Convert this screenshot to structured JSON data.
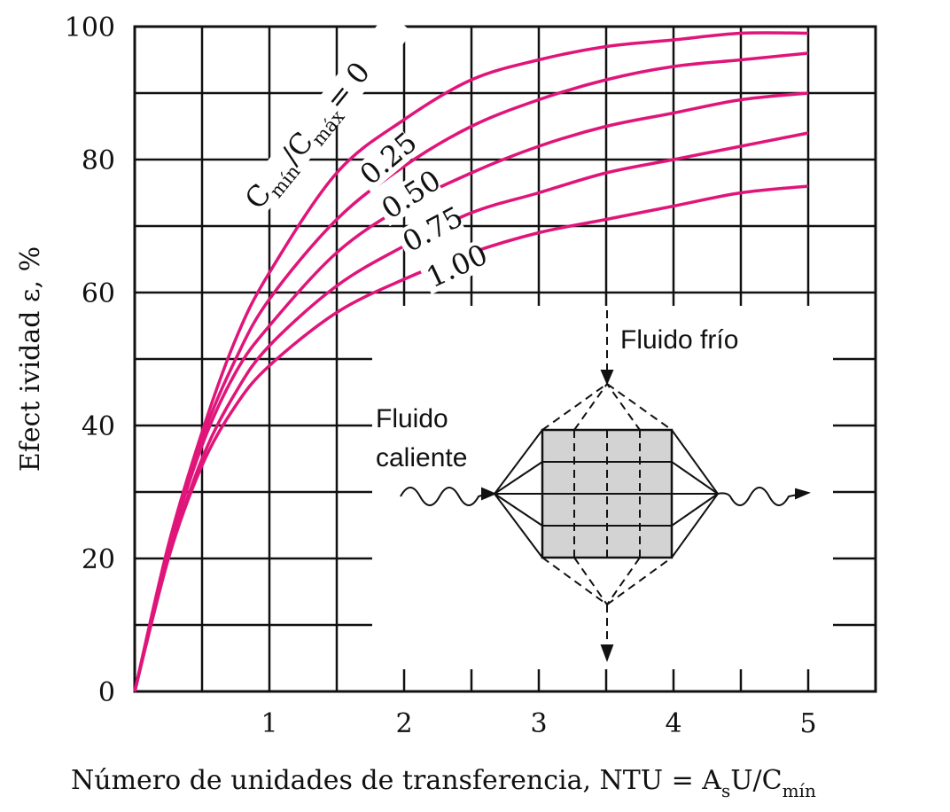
{
  "chart_data": {
    "type": "line",
    "xlabel": "Número de unidades de transferencia, NTU = A",
    "xlabel_sub_s": "s",
    "xlabel_mid": "U/C",
    "xlabel_sub_min": "mín",
    "ylabel": "Efect ividad ε, %",
    "xlim": [
      0,
      5.5
    ],
    "ylim": [
      0,
      100
    ],
    "x_ticks": [
      1,
      2,
      3,
      4,
      5
    ],
    "y_ticks": [
      0,
      20,
      40,
      60,
      80,
      100
    ],
    "grid": true,
    "curve_color": "#e0157a",
    "series": [
      {
        "name": "0",
        "x": [
          0,
          0.25,
          0.5,
          0.75,
          1,
          1.5,
          2,
          2.5,
          3,
          3.5,
          4,
          4.5,
          5
        ],
        "values": [
          0,
          22,
          39,
          53,
          63,
          78,
          86,
          92,
          95,
          97,
          98,
          99,
          99
        ]
      },
      {
        "name": "0.25",
        "x": [
          0,
          0.25,
          0.5,
          0.75,
          1,
          1.5,
          2,
          2.5,
          3,
          3.5,
          4,
          4.5,
          5
        ],
        "values": [
          0,
          21,
          38,
          50,
          59,
          71,
          79,
          85,
          89,
          92,
          94,
          95,
          96
        ]
      },
      {
        "name": "0.50",
        "x": [
          0,
          0.25,
          0.5,
          0.75,
          1,
          1.5,
          2,
          2.5,
          3,
          3.5,
          4,
          4.5,
          5
        ],
        "values": [
          0,
          21,
          37,
          48,
          55,
          66,
          73,
          78,
          82,
          85,
          87,
          89,
          90
        ]
      },
      {
        "name": "0.75",
        "x": [
          0,
          0.25,
          0.5,
          0.75,
          1,
          1.5,
          2,
          2.5,
          3,
          3.5,
          4,
          4.5,
          5
        ],
        "values": [
          0,
          20,
          35,
          45,
          52,
          61,
          67,
          72,
          75,
          78,
          80,
          82,
          84
        ]
      },
      {
        "name": "1.00",
        "x": [
          0,
          0.25,
          0.5,
          0.75,
          1,
          1.5,
          2,
          2.5,
          3,
          3.5,
          4,
          4.5,
          5
        ],
        "values": [
          0,
          20,
          34,
          43,
          49,
          57,
          62,
          66,
          69,
          71,
          73,
          75,
          76
        ]
      }
    ],
    "curve_labels": {
      "c_min": "C",
      "c_min_sub": "mín",
      "c_max": "/C",
      "c_max_sub": "máx",
      "c_eq": "= 0",
      "r025": "0.25",
      "r050": "0.50",
      "r075": "0.75",
      "r100": "1.00"
    },
    "inset": {
      "cold_label": "Fluido frío",
      "hot_label_1": "Fluido",
      "hot_label_2": "caliente"
    }
  }
}
